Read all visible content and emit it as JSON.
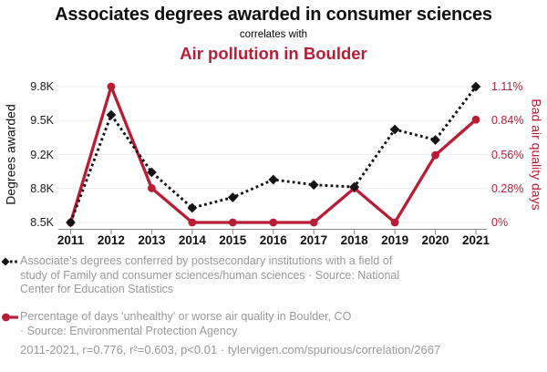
{
  "header": {
    "title": "Associates degrees awarded in consumer sciences",
    "subtitle": "correlates with",
    "title2": "Air pollution in Boulder"
  },
  "colors": {
    "accent_red": "#b81d35",
    "series_black": "#141414",
    "muted_gray": "#999999",
    "grid": "#ececec",
    "axis": "#8a8a8a"
  },
  "chart_data": {
    "type": "line",
    "x": [
      "2011",
      "2012",
      "2013",
      "2014",
      "2015",
      "2016",
      "2017",
      "2018",
      "2019",
      "2020",
      "2021"
    ],
    "series": [
      {
        "name": "Associates degrees awarded in consumer sciences",
        "axis": "left",
        "color": "#141414",
        "line_style": "dotted",
        "marker": "diamond",
        "unit": "thousand degrees",
        "values": [
          8.5,
          9.53,
          8.98,
          8.64,
          8.74,
          8.91,
          8.86,
          8.84,
          9.39,
          9.29,
          9.8
        ]
      },
      {
        "name": "Air pollution in Boulder",
        "axis": "right",
        "color": "#b81d35",
        "line_style": "solid",
        "marker": "circle",
        "unit": "percent bad air quality days",
        "values": [
          0,
          1.11,
          0.28,
          0,
          0,
          0,
          0,
          0.28,
          0,
          0.55,
          0.84
        ]
      }
    ],
    "left_axis": {
      "title": "Degrees awarded",
      "min": 8.5,
      "max": 9.8,
      "ticks": [
        "8.5K",
        "8.8K",
        "9.2K",
        "9.5K",
        "9.8K"
      ]
    },
    "right_axis": {
      "title": "Bad air quality days",
      "min": 0,
      "max": 1.11,
      "ticks": [
        "0%",
        "0.28%",
        "0.56%",
        "0.84%",
        "1.11%"
      ]
    },
    "grid": "horizontal",
    "legend_position": "bottom"
  },
  "legend": [
    {
      "marker": "black-diamond-dotted",
      "text": "Associate's degrees conferred by postsecondary institutions with a field of\nstudy of Family and consumer sciences/human sciences · Source: National\nCenter for Education Statistics"
    },
    {
      "marker": "red-circle-solid",
      "text": "Percentage of days 'unhealthy' or worse air quality in Boulder, CO\n· Source: Environmental Protection Agency"
    }
  ],
  "footer": {
    "text": "2011-2021, r=0.776, r²=0.603, p<0.01 · tylervigen.com/spurious/correlation/2667"
  }
}
